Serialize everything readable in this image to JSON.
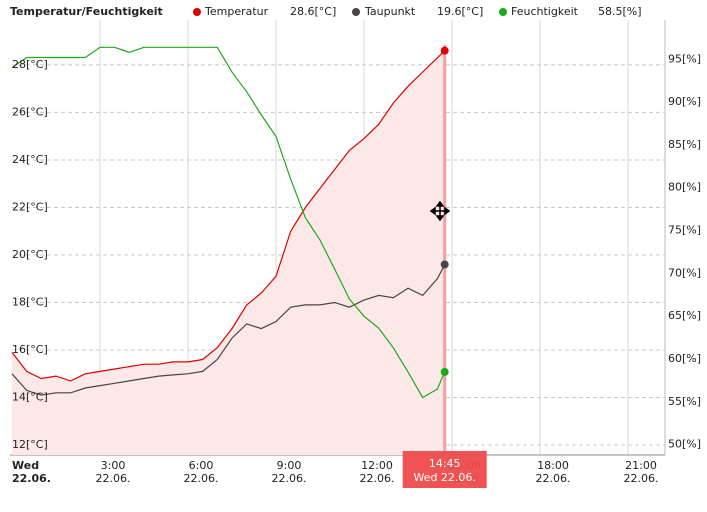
{
  "chart_data": {
    "type": "line",
    "title": "Temperatur/Feuchtigkeit",
    "x": [
      0,
      0.5,
      1,
      1.5,
      2,
      2.5,
      3,
      3.5,
      4,
      4.5,
      5,
      5.5,
      6,
      6.5,
      7,
      7.5,
      8,
      8.5,
      9,
      9.5,
      10,
      10.5,
      11,
      11.5,
      12,
      12.5,
      13,
      13.5,
      14,
      14.5,
      14.75
    ],
    "series": [
      {
        "name": "Temperatur",
        "color": "#e00000",
        "current": "28.6[°C]",
        "fill": "#fde8e8",
        "values": [
          15.9,
          15.1,
          14.8,
          14.9,
          14.7,
          15.0,
          15.1,
          15.2,
          15.3,
          15.4,
          15.4,
          15.5,
          15.5,
          15.6,
          16.1,
          16.9,
          17.9,
          18.4,
          19.1,
          21.0,
          22.0,
          22.8,
          23.6,
          24.4,
          24.9,
          25.5,
          26.4,
          27.1,
          27.7,
          28.3,
          28.6
        ]
      },
      {
        "name": "Taupunkt",
        "color": "#4a4444",
        "current": "19.6[°C]",
        "values": [
          15.0,
          14.3,
          14.1,
          14.2,
          14.2,
          14.4,
          14.5,
          14.6,
          14.7,
          14.8,
          14.9,
          14.95,
          15.0,
          15.1,
          15.6,
          16.5,
          17.1,
          16.9,
          17.2,
          17.8,
          17.9,
          17.9,
          18.0,
          17.8,
          18.1,
          18.3,
          18.2,
          18.6,
          18.3,
          19.0,
          19.6
        ]
      },
      {
        "name": "Feuchtigkeit",
        "color": "#1aaa1a",
        "current": "58.5[%]",
        "axis": "y2",
        "values": [
          94.0,
          95.2,
          95.2,
          95.2,
          95.2,
          95.2,
          96.4,
          96.4,
          95.8,
          96.4,
          96.4,
          96.4,
          96.4,
          96.4,
          96.4,
          93.5,
          91.2,
          88.5,
          86.0,
          81.0,
          76.5,
          73.9,
          70.5,
          67.0,
          65.0,
          63.6,
          61.3,
          58.5,
          55.5,
          56.5,
          58.5
        ]
      }
    ],
    "xlim": [
      0,
      22.26
    ],
    "xticks": [
      {
        "value": 0,
        "label": "Wed",
        "date": "22.06."
      },
      {
        "value": 3,
        "label": "3:00",
        "date": "22.06."
      },
      {
        "value": 6,
        "label": "6:00",
        "date": "22.06."
      },
      {
        "value": 9,
        "label": "9:00",
        "date": "22.06."
      },
      {
        "value": 12,
        "label": "12:00",
        "date": "22.06."
      },
      {
        "value": 15,
        "label": "15:00",
        "date": "22.06."
      },
      {
        "value": 18,
        "label": "18:00",
        "date": "22.06."
      },
      {
        "value": 21,
        "label": "21:00",
        "date": "22.06."
      }
    ],
    "ylim": [
      11.58,
      29.68
    ],
    "yticks": [
      {
        "value": 12,
        "label": "12[°C]"
      },
      {
        "value": 14,
        "label": "14[°C]"
      },
      {
        "value": 16,
        "label": "16[°C]"
      },
      {
        "value": 18,
        "label": "18[°C]"
      },
      {
        "value": 20,
        "label": "20[°C]"
      },
      {
        "value": 22,
        "label": "22[°C]"
      },
      {
        "value": 24,
        "label": "24[°C]"
      },
      {
        "value": 26,
        "label": "26[°C]"
      },
      {
        "value": 28,
        "label": "28[°C]"
      }
    ],
    "y2lim": [
      48.8,
      99.0
    ],
    "y2ticks": [
      {
        "value": 50,
        "label": "50[%]"
      },
      {
        "value": 55,
        "label": "55[%]"
      },
      {
        "value": 60,
        "label": "60[%]"
      },
      {
        "value": 65,
        "label": "65[%]"
      },
      {
        "value": 70,
        "label": "70[%]"
      },
      {
        "value": 75,
        "label": "75[%]"
      },
      {
        "value": 80,
        "label": "80[%]"
      },
      {
        "value": 85,
        "label": "85[%]"
      },
      {
        "value": 90,
        "label": "90[%]"
      },
      {
        "value": 95,
        "label": "95[%]"
      }
    ],
    "grid": true,
    "cursor": {
      "x": 14.75,
      "time": "14:45",
      "date": "Wed 22.06."
    }
  }
}
